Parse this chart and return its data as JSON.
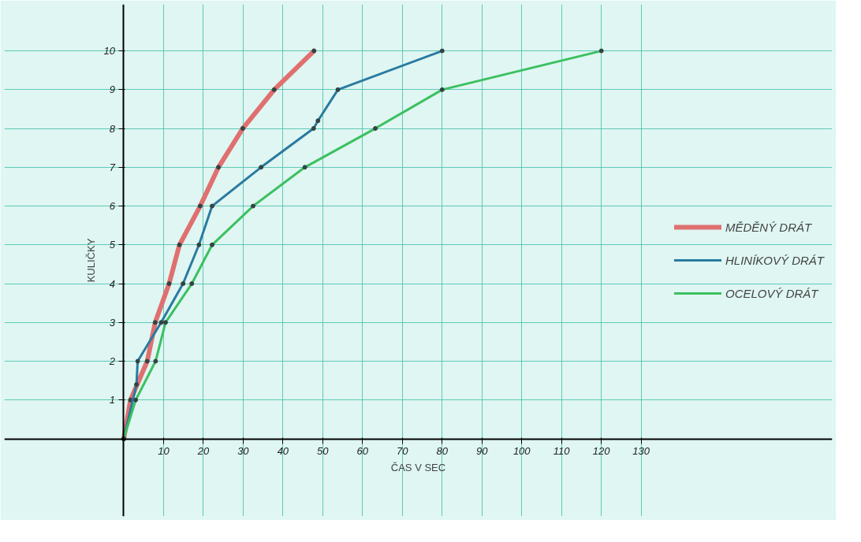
{
  "chart_data": {
    "type": "line",
    "xlabel": "ČAS V SEC",
    "ylabel": "KULIČKY",
    "xlim": [
      -30,
      178
    ],
    "ylim": [
      -2,
      11.2
    ],
    "xticks": [
      10,
      20,
      30,
      40,
      50,
      60,
      70,
      80,
      90,
      100,
      110,
      120,
      130
    ],
    "yticks": [
      1,
      2,
      3,
      4,
      5,
      6,
      7,
      8,
      9,
      10
    ],
    "grid": true,
    "legend": "right",
    "marker": "circle",
    "line_style": "solid",
    "series": [
      {
        "name": "MĚDĚNÝ DRÁT",
        "color": "#e07070",
        "x": [
          0,
          1.7,
          5.9,
          7.9,
          11.4,
          14,
          19.2,
          23.8,
          29.9,
          37.8,
          47.8
        ],
        "values": [
          0,
          1,
          2,
          3,
          4,
          5,
          6,
          7,
          8,
          9,
          10
        ]
      },
      {
        "name": "HLINÍKOVÝ DRÁT",
        "color": "#2a7aa0",
        "x": [
          0,
          3.2,
          3.5,
          9.4,
          14.9,
          18.9,
          22.2,
          34.5,
          47.7,
          48.8,
          53.8,
          80
        ],
        "values": [
          0,
          1.4,
          2,
          3,
          4,
          5,
          6,
          7,
          8,
          8.2,
          9,
          10
        ]
      },
      {
        "name": "OCELOVÝ DRÁT",
        "color": "#3cc060",
        "x": [
          0,
          3,
          8,
          10.5,
          17.1,
          22.2,
          32.5,
          45.5,
          63.2,
          80,
          120
        ],
        "values": [
          0,
          1,
          2,
          3,
          4,
          5,
          6,
          7,
          8,
          9,
          10
        ]
      }
    ]
  }
}
